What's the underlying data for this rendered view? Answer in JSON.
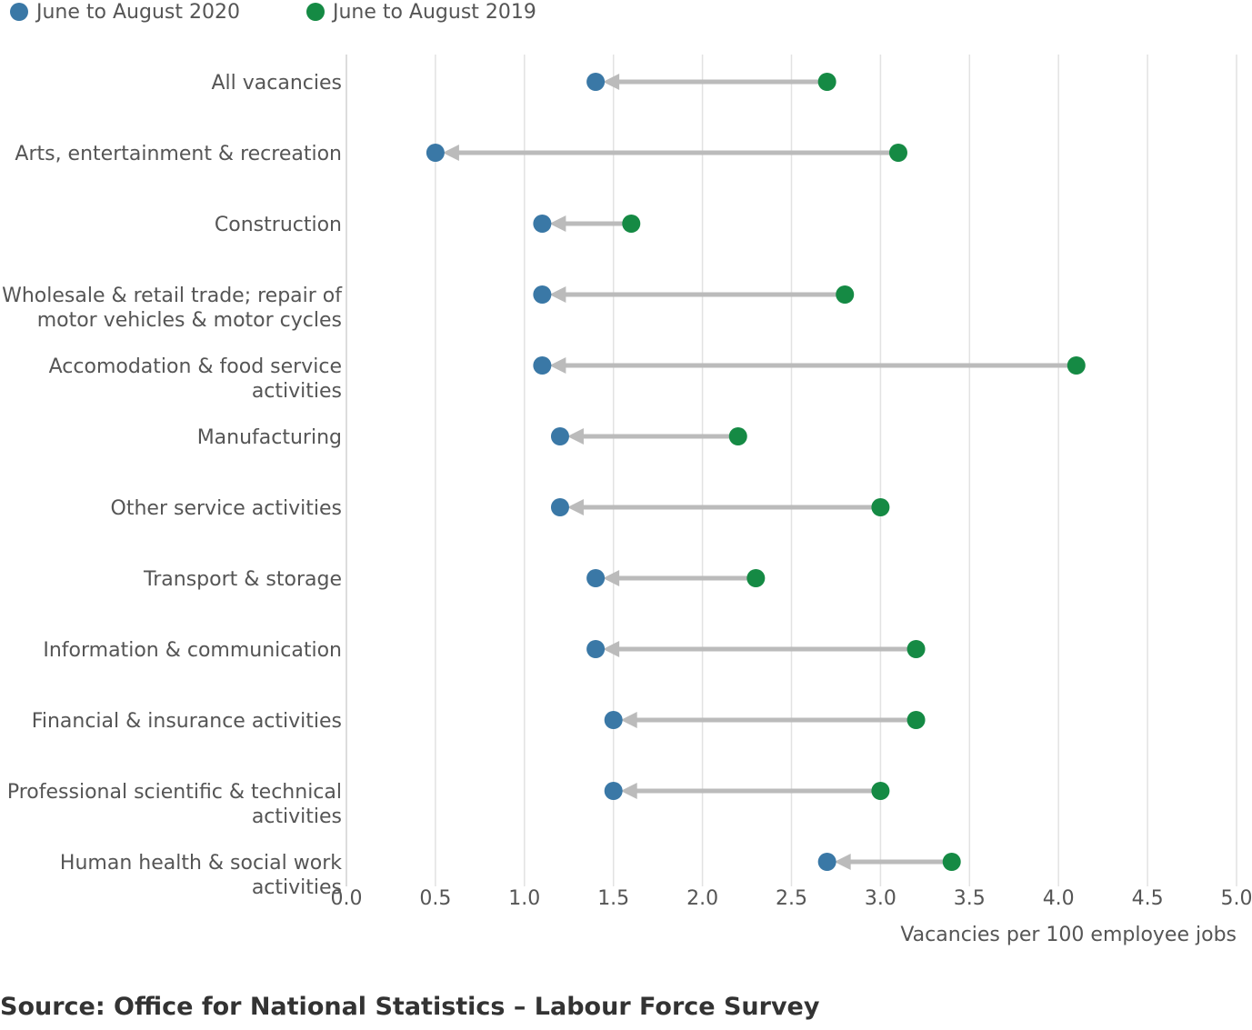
{
  "chart_data": {
    "type": "dumbbell",
    "categories": [
      [
        "All vacancies"
      ],
      [
        "Arts, entertainment & recreation"
      ],
      [
        "Construction"
      ],
      [
        "Wholesale & retail trade; repair of",
        "motor vehicles & motor cycles"
      ],
      [
        "Accomodation & food service",
        "activities"
      ],
      [
        "Manufacturing"
      ],
      [
        "Other service activities"
      ],
      [
        "Transport & storage"
      ],
      [
        "Information & communication"
      ],
      [
        "Financial & insurance activities"
      ],
      [
        "Professional scientific & technical",
        "activities"
      ],
      [
        "Human health & social work",
        "activities"
      ]
    ],
    "series": [
      {
        "name": "June to August 2020",
        "color": "#3a78a6",
        "values": [
          1.4,
          0.5,
          1.1,
          1.1,
          1.1,
          1.2,
          1.2,
          1.4,
          1.4,
          1.5,
          1.5,
          2.7
        ]
      },
      {
        "name": "June to August 2019",
        "color": "#158a44",
        "values": [
          2.7,
          3.1,
          1.6,
          2.8,
          4.1,
          2.2,
          3.0,
          2.3,
          3.2,
          3.2,
          3.0,
          3.4
        ]
      }
    ],
    "xlim": [
      0,
      5
    ],
    "xticks": [
      "0.0",
      "0.5",
      "1.0",
      "1.5",
      "2.0",
      "2.5",
      "3.0",
      "3.5",
      "4.0",
      "4.5",
      "5.0"
    ],
    "xlabel": "Vacancies per 100 employee jobs",
    "arrow_color": "#bbbbbb",
    "grid": true,
    "legend_position": "top-left"
  },
  "source": "Source: Office for National Statistics – Labour Force Survey"
}
